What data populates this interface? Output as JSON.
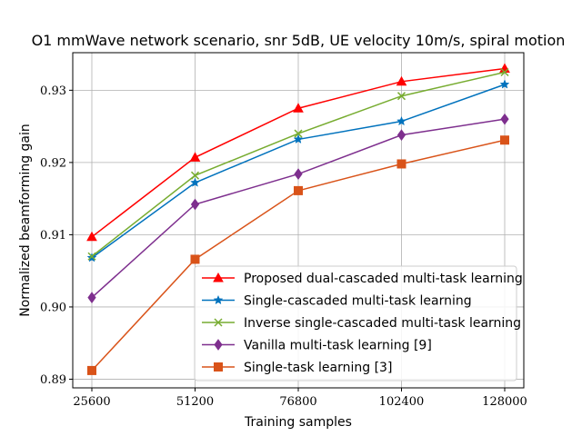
{
  "chart_data": {
    "type": "line",
    "title": "O1 mmWave network scenario, snr 5dB, UE velocity 10m/s, spiral motion",
    "xlabel": "Training samples",
    "ylabel": "Normalized beamforming gain",
    "categories": [
      "25600",
      "51200",
      "76800",
      "102400",
      "128000"
    ],
    "x": [
      25600,
      51200,
      76800,
      102400,
      128000
    ],
    "yticks": [
      "0.89",
      "0.90",
      "0.91",
      "0.92",
      "0.93"
    ],
    "ylim": [
      0.8888,
      0.9352
    ],
    "grid": true,
    "legend_position": "lower-right",
    "series": [
      {
        "name": "Proposed dual-cascaded multi-task learning",
        "color": "#ff0000",
        "marker": "triangle",
        "values": [
          0.9097,
          0.9207,
          0.9275,
          0.9312,
          0.933
        ]
      },
      {
        "name": "Single-cascaded multi-task learning",
        "color": "#0072bd",
        "marker": "star",
        "values": [
          0.9068,
          0.9172,
          0.9232,
          0.9257,
          0.9308
        ]
      },
      {
        "name": "Inverse single-cascaded multi-task learning",
        "color": "#77ac30",
        "marker": "x",
        "values": [
          0.907,
          0.9182,
          0.924,
          0.9292,
          0.9325
        ]
      },
      {
        "name": "Vanilla multi-task learning [9]",
        "color": "#7e2f8e",
        "marker": "diamond",
        "values": [
          0.9013,
          0.9142,
          0.9184,
          0.9238,
          0.926
        ]
      },
      {
        "name": "Single-task learning [3]",
        "color": "#d95319",
        "marker": "square",
        "values": [
          0.8912,
          0.9066,
          0.9161,
          0.9198,
          0.9231
        ]
      }
    ]
  }
}
